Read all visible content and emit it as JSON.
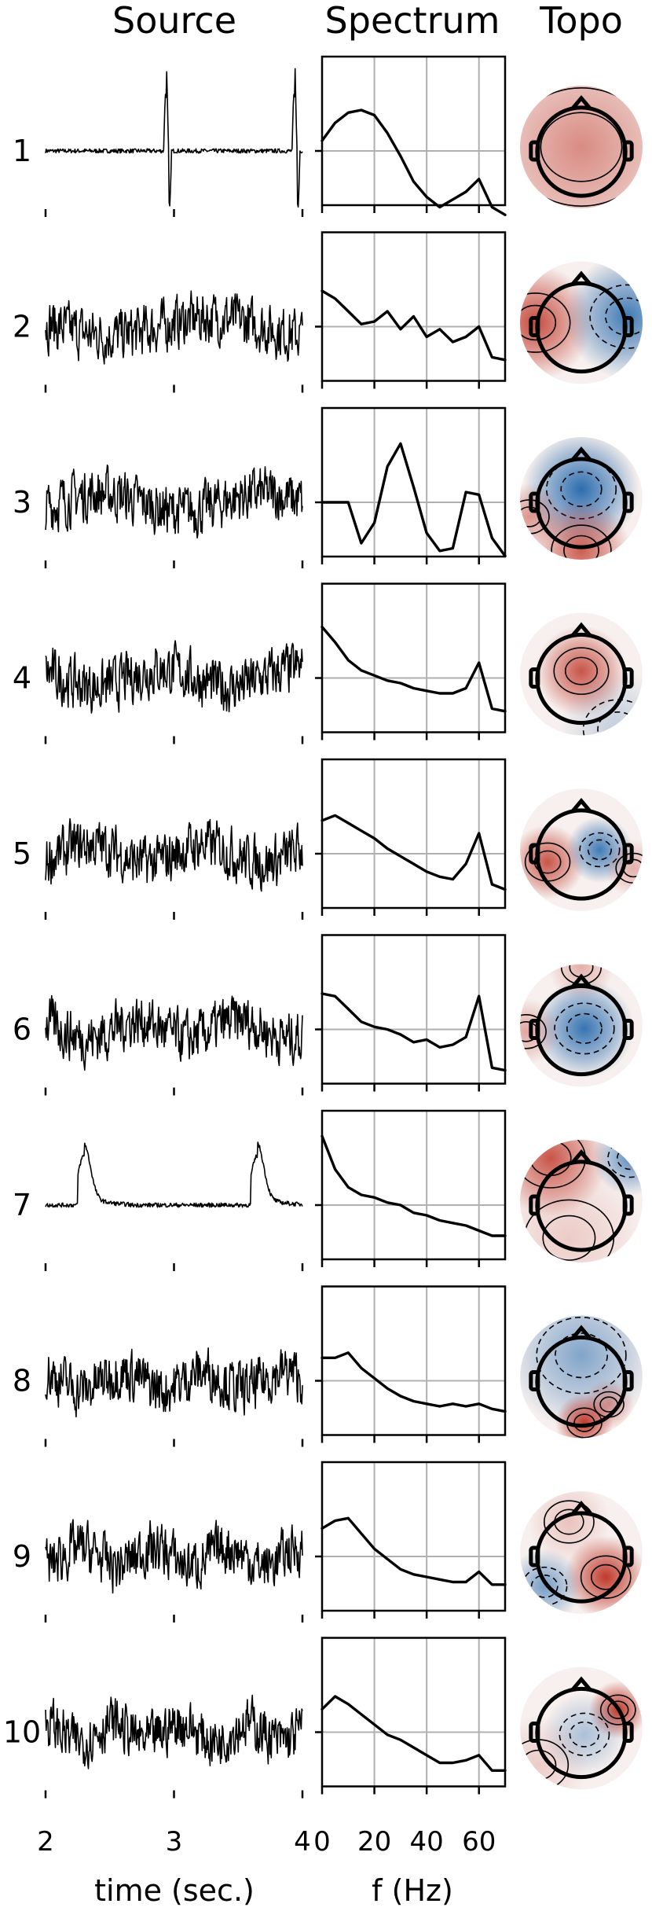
{
  "figure": {
    "col_titles": {
      "source": "Source",
      "spectrum": "Spectrum",
      "topo": "Topo"
    },
    "source_xlabel": "time (sec.)",
    "spectrum_xlabel": "f (Hz)",
    "source_xticks": [
      "2",
      "3",
      "4"
    ],
    "spectrum_xticks": [
      "0",
      "20",
      "40",
      "60"
    ],
    "colors": {
      "positive": "#c0392b",
      "negative": "#2166ac",
      "trace": "#000000",
      "grid": "#b0b0b0"
    }
  },
  "chart_data": {
    "type": "line",
    "source_xlim": [
      2,
      4
    ],
    "spectrum_xlim": [
      0,
      70
    ],
    "spectrum_grid_x": [
      20,
      40,
      60
    ],
    "components": [
      {
        "label": "1",
        "source_style": "spikes",
        "spikes_at": [
          2.95,
          3.95
        ],
        "spectrum_f": [
          0,
          5,
          10,
          15,
          20,
          25,
          30,
          35,
          40,
          45,
          50,
          55,
          60,
          65,
          70
        ],
        "spectrum_y": [
          0.2,
          0.55,
          0.75,
          0.8,
          0.7,
          0.35,
          -0.1,
          -0.6,
          -0.9,
          -1.1,
          -0.95,
          -0.8,
          -0.55,
          -1.1,
          -1.25
        ],
        "topo_blobs": [
          {
            "cx": 0,
            "cy": 0,
            "r": 1.4,
            "sign": 1,
            "amp": 0.55
          }
        ]
      },
      {
        "label": "2",
        "source_style": "noise",
        "spectrum_f": [
          0,
          5,
          10,
          15,
          20,
          25,
          30,
          35,
          40,
          45,
          50,
          55,
          60,
          65,
          70
        ],
        "spectrum_y": [
          0.7,
          0.55,
          0.3,
          0.05,
          0.1,
          0.3,
          -0.05,
          0.2,
          -0.2,
          -0.05,
          -0.3,
          -0.2,
          0.0,
          -0.6,
          -0.65
        ],
        "topo_blobs": [
          {
            "cx": -0.75,
            "cy": 0,
            "r": 0.7,
            "sign": 1,
            "amp": 0.9
          },
          {
            "cx": 0.75,
            "cy": -0.1,
            "r": 0.75,
            "sign": -1,
            "amp": 0.85
          }
        ]
      },
      {
        "label": "3",
        "source_style": "noise",
        "spectrum_f": [
          0,
          5,
          10,
          15,
          20,
          25,
          30,
          35,
          40,
          45,
          50,
          55,
          60,
          65,
          70
        ],
        "spectrum_y": [
          0.0,
          0.0,
          0.0,
          -0.8,
          -0.4,
          0.7,
          1.15,
          0.3,
          -0.6,
          -0.95,
          -0.9,
          0.2,
          0.15,
          -0.7,
          -1.05
        ],
        "topo_blobs": [
          {
            "cx": 0,
            "cy": -0.15,
            "r": 0.7,
            "sign": -1,
            "amp": 0.95
          },
          {
            "cx": 0,
            "cy": 0.85,
            "r": 0.6,
            "sign": 1,
            "amp": 0.8
          },
          {
            "cx": -0.85,
            "cy": 0.3,
            "r": 0.4,
            "sign": 1,
            "amp": 0.5
          }
        ]
      },
      {
        "label": "4",
        "source_style": "noise",
        "spectrum_f": [
          0,
          5,
          10,
          15,
          20,
          25,
          30,
          35,
          40,
          45,
          50,
          55,
          60,
          65,
          70
        ],
        "spectrum_y": [
          1.0,
          0.7,
          0.35,
          0.15,
          0.05,
          -0.05,
          -0.1,
          -0.2,
          -0.25,
          -0.3,
          -0.3,
          -0.2,
          0.3,
          -0.6,
          -0.65
        ],
        "topo_blobs": [
          {
            "cx": 0,
            "cy": -0.05,
            "r": 0.55,
            "sign": 1,
            "amp": 0.85
          },
          {
            "cx": 0.6,
            "cy": 0.9,
            "r": 0.7,
            "sign": -1,
            "amp": 0.25
          }
        ]
      },
      {
        "label": "5",
        "source_style": "noise",
        "spectrum_f": [
          0,
          5,
          10,
          15,
          20,
          25,
          30,
          35,
          40,
          45,
          50,
          55,
          60,
          65,
          70
        ],
        "spectrum_y": [
          0.65,
          0.75,
          0.6,
          0.45,
          0.3,
          0.1,
          -0.05,
          -0.2,
          -0.35,
          -0.45,
          -0.5,
          -0.2,
          0.4,
          -0.6,
          -0.7
        ],
        "topo_blobs": [
          {
            "cx": -0.55,
            "cy": 0.2,
            "r": 0.45,
            "sign": 1,
            "amp": 0.85
          },
          {
            "cx": 0.3,
            "cy": 0.0,
            "r": 0.4,
            "sign": -1,
            "amp": 0.85
          },
          {
            "cx": 0.85,
            "cy": 0.3,
            "r": 0.35,
            "sign": 1,
            "amp": 0.35
          }
        ]
      },
      {
        "label": "6",
        "source_style": "noise",
        "spectrum_f": [
          0,
          5,
          10,
          15,
          20,
          25,
          30,
          35,
          40,
          45,
          50,
          55,
          60,
          65,
          70
        ],
        "spectrum_y": [
          0.7,
          0.65,
          0.4,
          0.15,
          0.05,
          0.0,
          -0.1,
          -0.25,
          -0.2,
          -0.35,
          -0.3,
          -0.15,
          0.65,
          -0.75,
          -0.8
        ],
        "topo_blobs": [
          {
            "cx": 0.05,
            "cy": 0.05,
            "r": 0.6,
            "sign": -1,
            "amp": 0.9
          },
          {
            "cx": -0.9,
            "cy": 0.1,
            "r": 0.4,
            "sign": 1,
            "amp": 0.4
          },
          {
            "cx": 0,
            "cy": -0.95,
            "r": 0.4,
            "sign": 1,
            "amp": 0.35
          }
        ]
      },
      {
        "label": "7",
        "source_style": "spikes",
        "spikes_at": [
          2.3,
          3.65
        ],
        "spectrum_f": [
          0,
          5,
          10,
          15,
          20,
          25,
          30,
          35,
          40,
          45,
          50,
          55,
          60,
          65,
          70
        ],
        "spectrum_y": [
          1.35,
          0.7,
          0.35,
          0.2,
          0.15,
          0.05,
          0.0,
          -0.15,
          -0.2,
          -0.3,
          -0.35,
          -0.4,
          -0.5,
          -0.6,
          -0.6
        ],
        "topo_blobs": [
          {
            "cx": -0.5,
            "cy": -0.7,
            "r": 0.7,
            "sign": 1,
            "amp": 0.85
          },
          {
            "cx": 0.8,
            "cy": -0.7,
            "r": 0.45,
            "sign": -1,
            "amp": 0.7
          },
          {
            "cx": -0.2,
            "cy": 0.6,
            "r": 0.9,
            "sign": 1,
            "amp": 0.2
          }
        ]
      },
      {
        "label": "8",
        "source_style": "noise",
        "spectrum_f": [
          0,
          5,
          10,
          15,
          20,
          25,
          30,
          35,
          40,
          45,
          50,
          55,
          60,
          65,
          70
        ],
        "spectrum_y": [
          0.45,
          0.45,
          0.55,
          0.25,
          0.05,
          -0.15,
          -0.3,
          -0.4,
          -0.45,
          -0.5,
          -0.45,
          -0.5,
          -0.45,
          -0.55,
          -0.6
        ],
        "topo_blobs": [
          {
            "cx": 0,
            "cy": -0.35,
            "r": 0.9,
            "sign": -1,
            "amp": 0.55
          },
          {
            "cx": 0.05,
            "cy": 0.75,
            "r": 0.35,
            "sign": 1,
            "amp": 1.0
          },
          {
            "cx": 0.45,
            "cy": 0.45,
            "r": 0.3,
            "sign": 1,
            "amp": 0.5
          }
        ]
      },
      {
        "label": "9",
        "source_style": "noise",
        "spectrum_f": [
          0,
          5,
          10,
          15,
          20,
          25,
          30,
          35,
          40,
          45,
          50,
          55,
          60,
          65,
          70
        ],
        "spectrum_y": [
          0.55,
          0.7,
          0.75,
          0.45,
          0.15,
          -0.05,
          -0.25,
          -0.35,
          -0.4,
          -0.45,
          -0.5,
          -0.5,
          -0.3,
          -0.55,
          -0.55
        ],
        "topo_blobs": [
          {
            "cx": 0.4,
            "cy": 0.4,
            "r": 0.5,
            "sign": 1,
            "amp": 1.0
          },
          {
            "cx": -0.6,
            "cy": 0.55,
            "r": 0.45,
            "sign": -1,
            "amp": 0.6
          },
          {
            "cx": -0.2,
            "cy": -0.5,
            "r": 0.5,
            "sign": 1,
            "amp": 0.25
          }
        ]
      },
      {
        "label": "10",
        "source_style": "noise",
        "spectrum_f": [
          0,
          5,
          10,
          15,
          20,
          25,
          30,
          35,
          40,
          45,
          50,
          55,
          60,
          65,
          70
        ],
        "spectrum_y": [
          0.45,
          0.7,
          0.55,
          0.35,
          0.15,
          -0.05,
          -0.15,
          -0.3,
          -0.45,
          -0.6,
          -0.6,
          -0.55,
          -0.45,
          -0.75,
          -0.75
        ],
        "topo_blobs": [
          {
            "cx": 0.6,
            "cy": -0.3,
            "r": 0.35,
            "sign": 1,
            "amp": 1.0
          },
          {
            "cx": 0.05,
            "cy": 0.1,
            "r": 0.5,
            "sign": -1,
            "amp": 0.35
          },
          {
            "cx": -0.7,
            "cy": 0.6,
            "r": 0.6,
            "sign": 1,
            "amp": 0.2
          }
        ]
      }
    ]
  }
}
